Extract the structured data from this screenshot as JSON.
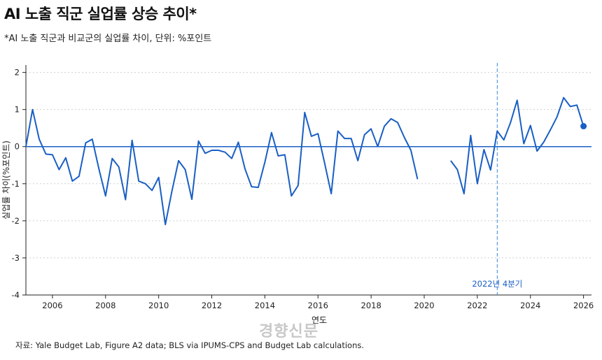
{
  "header": {
    "title": "AI 노출 직군 실업률 상승 추이*",
    "subtitle": "*AI 노출 직군과 비교군의 실업률 차이, 단위: %포인트"
  },
  "footer": {
    "source": "자료: Yale Budget Lab, Figure A2 data; BLS via IPUMS-CPS and Budget Lab calculations.",
    "watermark": "경향신문"
  },
  "colors": {
    "line": "#1a5fc4",
    "zero_line": "#1a5fc4",
    "marker_line": "#3a86d9",
    "grid": "#cfcfcf"
  },
  "chart_data": {
    "type": "line",
    "xlabel": "연도",
    "ylabel": "실업률 차이(%포인트)",
    "xlim": [
      2005.0,
      2026.3
    ],
    "ylim": [
      -4,
      2.2
    ],
    "xticks": [
      2006,
      2008,
      2010,
      2012,
      2014,
      2016,
      2018,
      2020,
      2022,
      2024,
      2026
    ],
    "yticks": [
      2,
      1,
      0,
      -1,
      -2,
      -3,
      -4
    ],
    "grid": "horizontal dotted",
    "annotation": {
      "x": 2022.75,
      "label": "2022년 4분기"
    },
    "series": [
      {
        "segments": [
          [
            [
              2005.0,
              0.0
            ],
            [
              2005.25,
              1.0
            ],
            [
              2005.5,
              0.2
            ],
            [
              2005.75,
              -0.2
            ],
            [
              2006.0,
              -0.22
            ],
            [
              2006.25,
              -0.62
            ],
            [
              2006.5,
              -0.3
            ],
            [
              2006.75,
              -0.93
            ],
            [
              2007.0,
              -0.8
            ],
            [
              2007.25,
              0.1
            ],
            [
              2007.5,
              0.2
            ],
            [
              2007.75,
              -0.6
            ],
            [
              2008.0,
              -1.33
            ],
            [
              2008.25,
              -0.32
            ],
            [
              2008.5,
              -0.55
            ],
            [
              2008.75,
              -1.43
            ],
            [
              2009.0,
              0.17
            ],
            [
              2009.25,
              -0.93
            ],
            [
              2009.5,
              -1.0
            ],
            [
              2009.75,
              -1.18
            ],
            [
              2010.0,
              -0.83
            ],
            [
              2010.25,
              -2.1
            ],
            [
              2010.5,
              -1.2
            ],
            [
              2010.75,
              -0.38
            ],
            [
              2011.0,
              -0.62
            ],
            [
              2011.25,
              -1.42
            ],
            [
              2011.5,
              0.15
            ],
            [
              2011.75,
              -0.18
            ],
            [
              2012.0,
              -0.1
            ],
            [
              2012.25,
              -0.1
            ],
            [
              2012.5,
              -0.15
            ],
            [
              2012.75,
              -0.32
            ],
            [
              2013.0,
              0.12
            ],
            [
              2013.25,
              -0.6
            ],
            [
              2013.5,
              -1.08
            ],
            [
              2013.75,
              -1.1
            ],
            [
              2014.0,
              -0.42
            ],
            [
              2014.25,
              0.38
            ],
            [
              2014.5,
              -0.25
            ],
            [
              2014.75,
              -0.22
            ],
            [
              2015.0,
              -1.33
            ],
            [
              2015.25,
              -1.05
            ],
            [
              2015.5,
              0.92
            ],
            [
              2015.75,
              0.28
            ],
            [
              2016.0,
              0.35
            ],
            [
              2016.25,
              -0.45
            ],
            [
              2016.5,
              -1.27
            ],
            [
              2016.75,
              0.42
            ],
            [
              2017.0,
              0.22
            ],
            [
              2017.25,
              0.22
            ],
            [
              2017.5,
              -0.38
            ],
            [
              2017.75,
              0.32
            ],
            [
              2018.0,
              0.48
            ],
            [
              2018.25,
              0.0
            ],
            [
              2018.5,
              0.55
            ],
            [
              2018.75,
              0.75
            ],
            [
              2019.0,
              0.65
            ],
            [
              2019.25,
              0.25
            ],
            [
              2019.5,
              -0.1
            ],
            [
              2019.75,
              -0.88
            ]
          ],
          [
            [
              2021.0,
              -0.38
            ],
            [
              2021.25,
              -0.62
            ],
            [
              2021.5,
              -1.27
            ],
            [
              2021.75,
              0.3
            ],
            [
              2022.0,
              -1.0
            ],
            [
              2022.25,
              -0.08
            ],
            [
              2022.5,
              -0.63
            ],
            [
              2022.75,
              0.42
            ],
            [
              2023.0,
              0.18
            ],
            [
              2023.25,
              0.65
            ],
            [
              2023.5,
              1.25
            ],
            [
              2023.75,
              0.08
            ],
            [
              2024.0,
              0.57
            ],
            [
              2024.25,
              -0.12
            ],
            [
              2024.5,
              0.12
            ],
            [
              2024.75,
              0.45
            ],
            [
              2025.0,
              0.8
            ],
            [
              2025.25,
              1.32
            ],
            [
              2025.5,
              1.08
            ],
            [
              2025.75,
              1.12
            ],
            [
              2026.0,
              0.55
            ]
          ]
        ],
        "last_point": [
          2026.0,
          0.55
        ]
      }
    ]
  }
}
